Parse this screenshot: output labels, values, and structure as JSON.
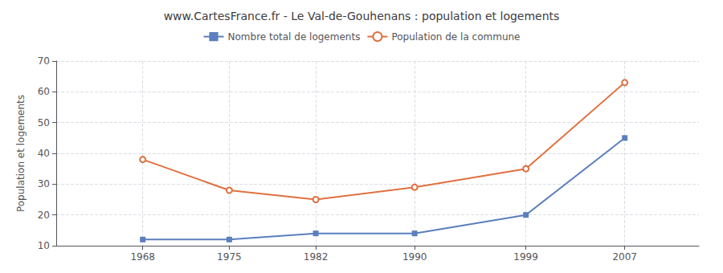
{
  "chart_data": {
    "type": "line",
    "title": "www.CartesFrance.fr - Le Val-de-Gouhenans : population et logements",
    "ylabel": "Population et logements",
    "x": [
      1968,
      1975,
      1982,
      1990,
      1999,
      2007
    ],
    "series": [
      {
        "name": "Nombre total de logements",
        "color": "#5b7fbd",
        "marker": "square",
        "values": [
          12,
          12,
          14,
          14,
          20,
          45
        ]
      },
      {
        "name": "Population de la commune",
        "color": "#e07040",
        "marker": "circle",
        "values": [
          38,
          28,
          25,
          29,
          35,
          63
        ]
      }
    ],
    "xlim": [
      1961,
      2013
    ],
    "xticks": [
      1968,
      1975,
      1982,
      1990,
      1999,
      2007
    ],
    "ylim": [
      10,
      70
    ],
    "yticks": [
      10,
      20,
      30,
      40,
      50,
      60,
      70
    ],
    "grid": true,
    "legend": "top"
  }
}
